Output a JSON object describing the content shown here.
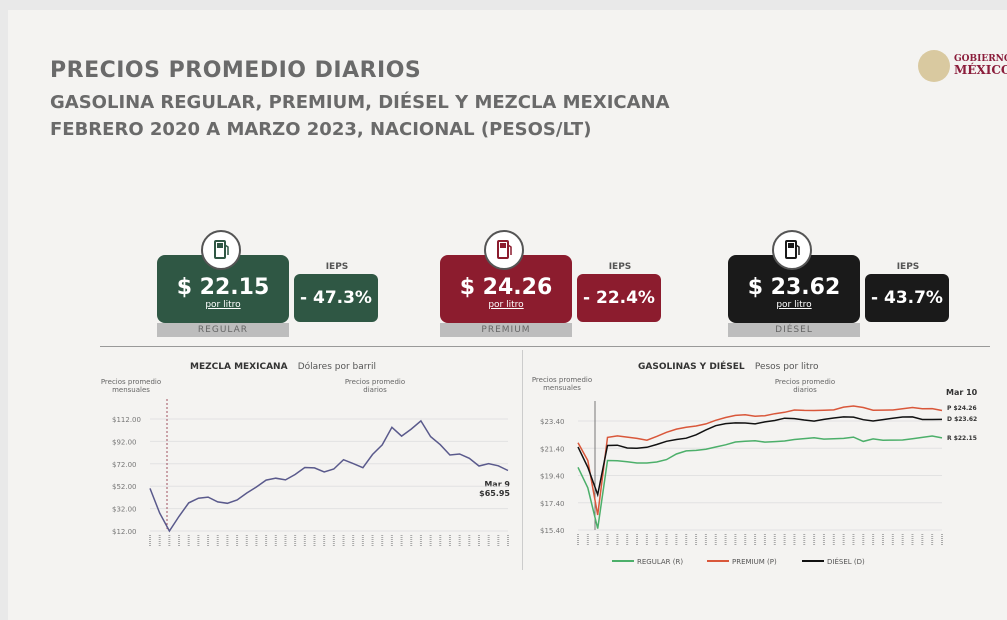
{
  "header": {
    "title": "PRECIOS PROMEDIO DIARIOS",
    "subtitle": "GASOLINA REGULAR, PREMIUM, DIÉSEL Y MEZCLA MEXICANA",
    "period": "FEBRERO 2020 A MARZO 2023, NACIONAL (PESOS/LT)",
    "logo": "GOBIERNO DE MÉXICO"
  },
  "cards": [
    {
      "price": "$ 22.15",
      "unit": "por litro",
      "name": "REGULAR",
      "ieps_label": "IEPS",
      "discount": "- 47.3%",
      "color": "#2f5744",
      "icon": "fuel-pump-icon"
    },
    {
      "price": "$ 24.26",
      "unit": "por litro",
      "name": "PREMIUM",
      "ieps_label": "IEPS",
      "discount": "- 22.4%",
      "color": "#8c1c2e",
      "icon": "fuel-pump-icon"
    },
    {
      "price": "$ 23.62",
      "unit": "por litro",
      "name": "DIÉSEL",
      "ieps_label": "IEPS",
      "discount": "- 43.7%",
      "color": "#1a1a1a",
      "icon": "fuel-pump-icon"
    }
  ],
  "chart_data": [
    {
      "type": "line",
      "title": "MEZCLA MEXICANA",
      "subtitle": "Dólares por barril",
      "note_left": "Precios promedio mensuales",
      "note_right": "Precios promedio diarios",
      "yticks": [
        "$112.00",
        "$92.00",
        "$72.00",
        "$52.00",
        "$32.00",
        "$12.00"
      ],
      "ylim": [
        12,
        112
      ],
      "grid": true,
      "series": [
        {
          "color": "#5a5a8c",
          "values": [
            50,
            28,
            12,
            25,
            36,
            40,
            42,
            39,
            38,
            40,
            45,
            50,
            57,
            60,
            59,
            63,
            68,
            67,
            64,
            68,
            77,
            73,
            68,
            79,
            88,
            105,
            98,
            104,
            110,
            95,
            88,
            80,
            82,
            78,
            70,
            71,
            69,
            65.95
          ]
        }
      ],
      "annotation": {
        "date": "Mar 9",
        "value": "$65.95"
      }
    },
    {
      "type": "line",
      "title": "GASOLINAS Y DIÉSEL",
      "subtitle": "Pesos por litro",
      "note_left": "Precios promedio mensuales",
      "note_right": "Precios promedio diarios",
      "yticks": [
        "$23.40",
        "$21.40",
        "$19.40",
        "$17.40",
        "$15.40"
      ],
      "ylim": [
        15.4,
        23.4
      ],
      "grid": true,
      "series": [
        {
          "name": "REGULAR (R)",
          "color": "#4caf6a",
          "values": [
            20.0,
            18.5,
            15.5,
            20.5,
            20.4,
            20.3,
            20.3,
            20.4,
            20.5,
            20.6,
            20.9,
            21.1,
            21.2,
            21.4,
            21.6,
            21.7,
            21.8,
            21.8,
            21.9,
            21.9,
            22.0,
            22.0,
            22.0,
            22.0,
            22.1,
            22.1,
            22.2,
            22.2,
            22.2,
            21.8,
            22.0,
            22.0,
            22.1,
            22.1,
            22.1,
            22.1,
            22.2,
            22.15
          ]
        },
        {
          "name": "PREMIUM (P)",
          "color": "#d9573a",
          "values": [
            21.8,
            20.5,
            16.5,
            22.2,
            22.2,
            22.2,
            22.2,
            22.1,
            22.3,
            22.5,
            22.7,
            22.9,
            23.1,
            23.3,
            23.5,
            23.6,
            23.7,
            23.8,
            23.8,
            23.9,
            24.0,
            24.0,
            24.1,
            24.1,
            24.2,
            24.3,
            24.3,
            24.4,
            24.4,
            24.3,
            24.2,
            24.3,
            24.3,
            24.3,
            24.3,
            24.2,
            24.3,
            24.26
          ]
        },
        {
          "name": "DIÉSEL (D)",
          "color": "#111111",
          "values": [
            21.5,
            20.0,
            18.0,
            21.6,
            21.6,
            21.5,
            21.5,
            21.5,
            21.6,
            21.8,
            22.0,
            22.2,
            22.5,
            22.8,
            23.0,
            23.1,
            23.2,
            23.3,
            23.3,
            23.4,
            23.4,
            23.5,
            23.5,
            23.5,
            23.5,
            23.6,
            23.6,
            23.6,
            23.6,
            23.5,
            23.5,
            23.6,
            23.6,
            23.6,
            23.6,
            23.5,
            23.6,
            23.62
          ]
        }
      ],
      "annotation": {
        "date": "Mar 10",
        "labels": [
          "P $24.26",
          "D $23.62",
          "R $22.15"
        ]
      }
    }
  ]
}
